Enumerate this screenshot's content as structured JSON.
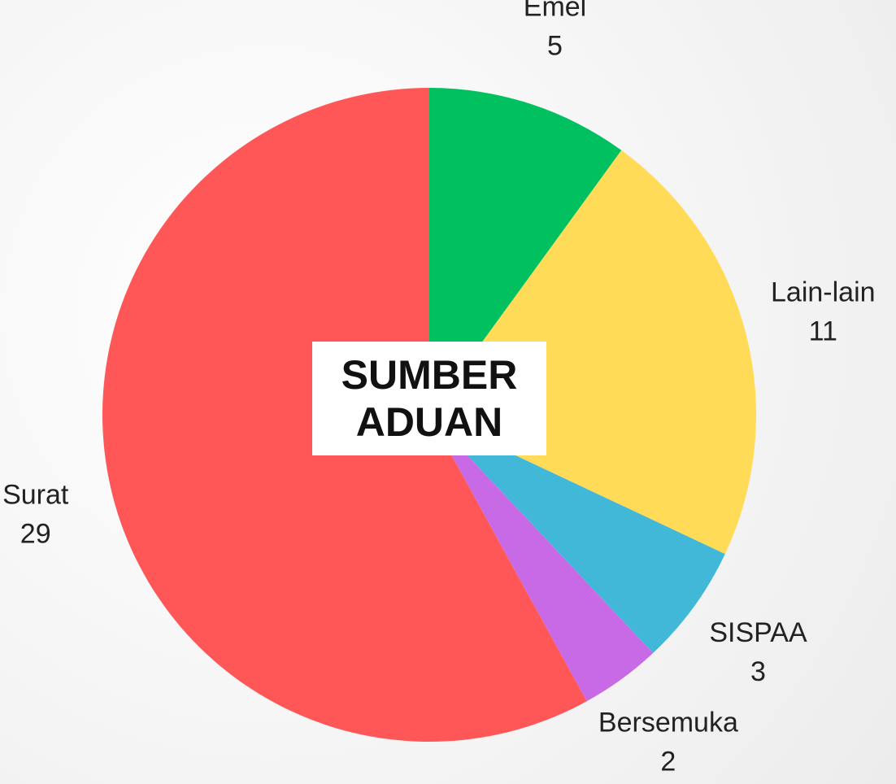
{
  "chart_data": {
    "type": "pie",
    "title": "SUMBER ADUAN",
    "categories": [
      "Emel",
      "Lain-lain",
      "SISPAA",
      "Bersemuka",
      "Surat"
    ],
    "values": [
      5,
      11,
      3,
      2,
      29
    ],
    "colors": [
      "#00c060",
      "#ffdb58",
      "#42b8d8",
      "#c86ae6",
      "#ff5757"
    ]
  }
}
